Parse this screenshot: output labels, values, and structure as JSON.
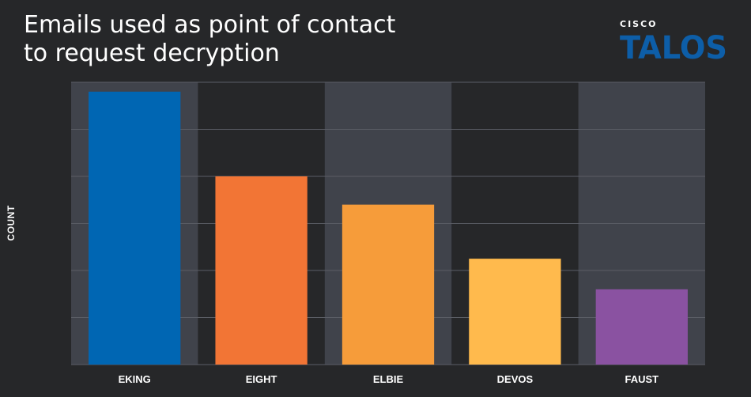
{
  "header": {
    "title_line1": "Emails used as point of contact",
    "title_line2": "to request decryption",
    "brand_top": "CISCO",
    "brand_name": "TALOS"
  },
  "colors": {
    "background": "#262729",
    "band": "#40434b",
    "grid": "#5b5e66",
    "brand": "#0d5ea8"
  },
  "chart_data": {
    "type": "bar",
    "title": "Emails used as point of contact to request decryption",
    "xlabel": "",
    "ylabel": "COUNT",
    "categories": [
      "EKING",
      "EIGHT",
      "ELBIE",
      "DEVOS",
      "FAUST"
    ],
    "values": [
      58,
      40,
      34,
      22.5,
      16
    ],
    "colors": [
      "#0066b3",
      "#f27535",
      "#f69c3a",
      "#ffba4d",
      "#8a52a1"
    ],
    "ylim": [
      0,
      60
    ],
    "y_ticks": [
      0,
      10,
      20,
      30,
      40,
      50,
      60
    ],
    "grid": true,
    "show_y_tick_labels": false
  }
}
